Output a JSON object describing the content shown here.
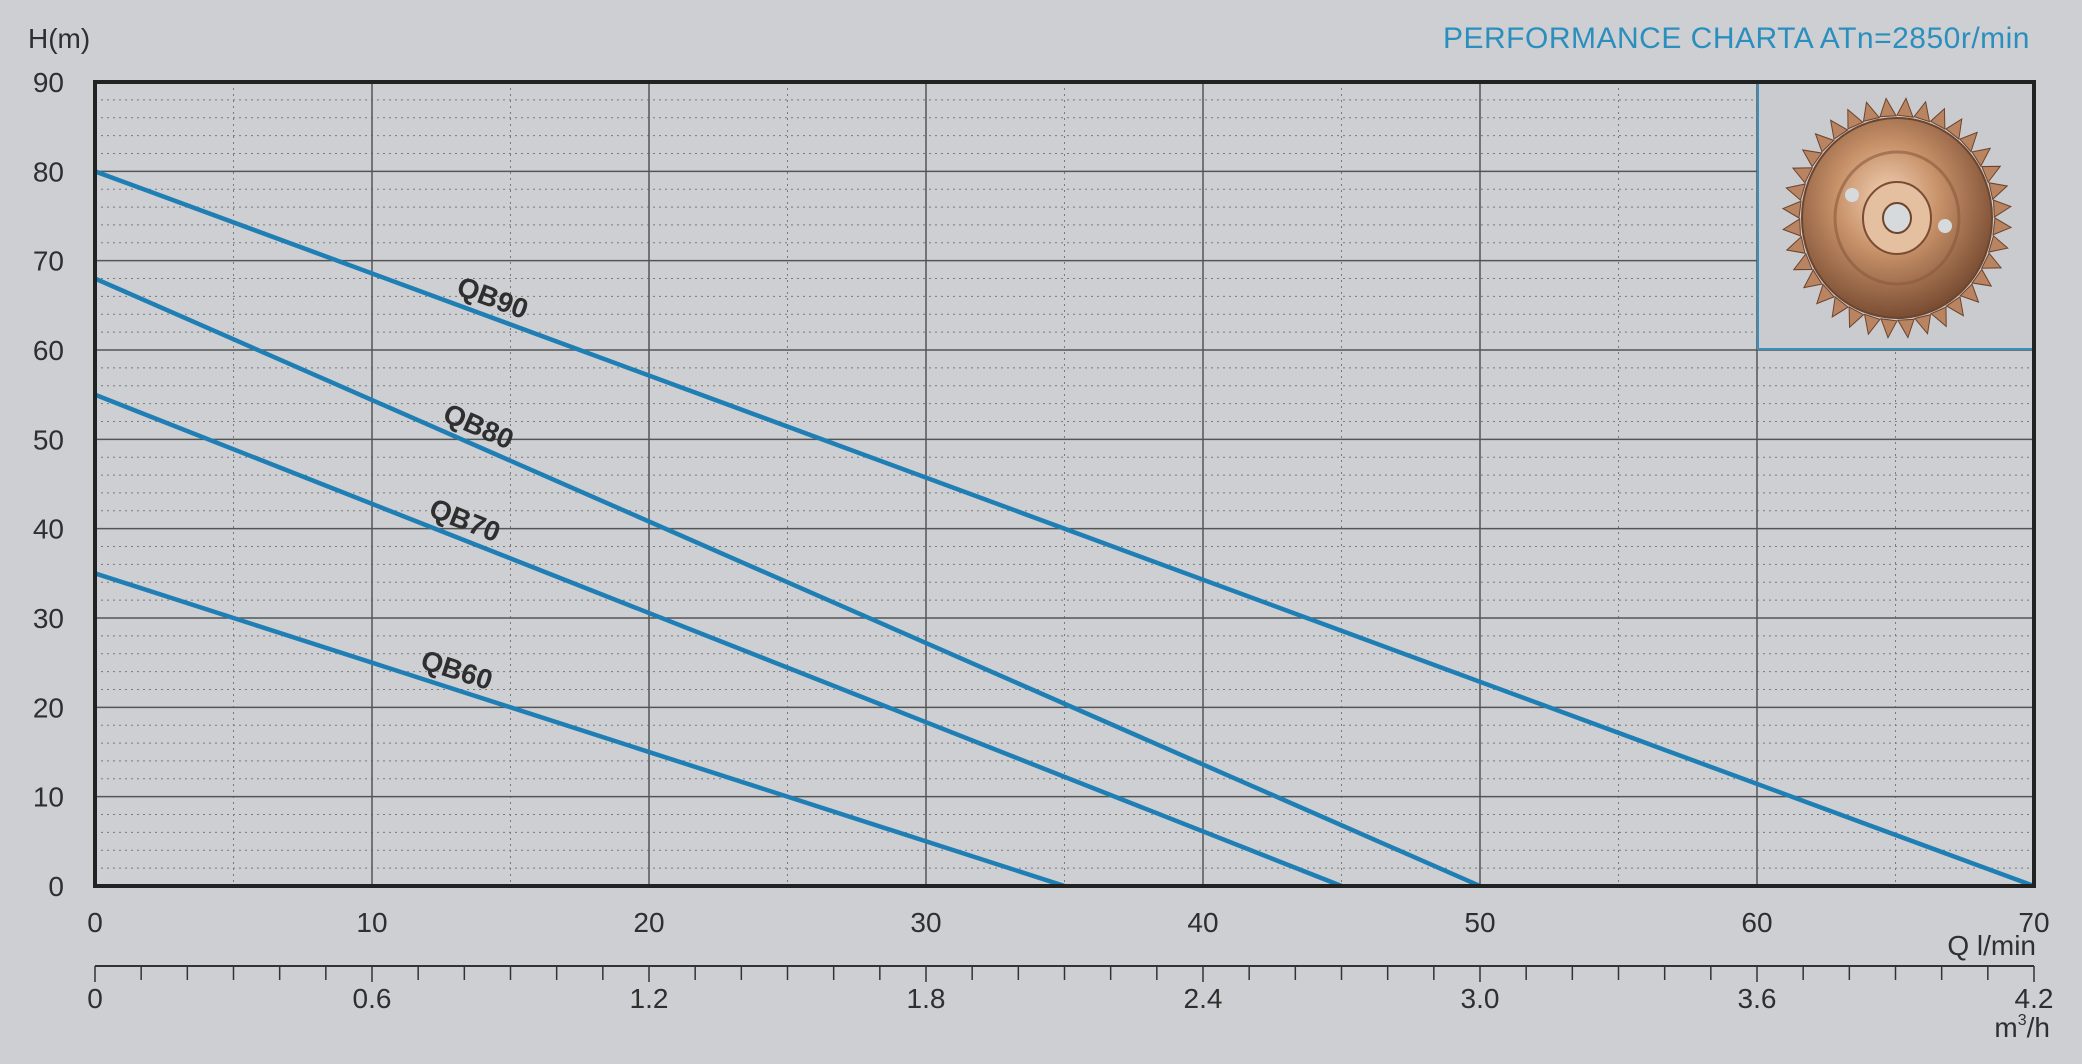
{
  "chart_data": {
    "type": "line",
    "title": "PERFORMANCE CHARTA ATn=2850r/min",
    "ylabel": "H(m)",
    "xlabel": "Q l/min",
    "x2label_main": "m",
    "x2label_sup": "3",
    "x2label_tail": "/h",
    "xlim": [
      0,
      70
    ],
    "ylim": [
      0,
      90
    ],
    "x_ticks": [
      0,
      10,
      20,
      30,
      40,
      50,
      60,
      70
    ],
    "y_ticks": [
      0,
      10,
      20,
      30,
      40,
      50,
      60,
      70,
      80,
      90
    ],
    "x2_ticks": [
      "0",
      "0.6",
      "1.2",
      "1.8",
      "2.4",
      "3.0",
      "3.6",
      "4.2"
    ],
    "grid": true,
    "series": [
      {
        "name": "QB90",
        "x": [
          0,
          70
        ],
        "y": [
          80,
          0
        ]
      },
      {
        "name": "QB80",
        "x": [
          0,
          50
        ],
        "y": [
          68,
          0
        ]
      },
      {
        "name": "QB70",
        "x": [
          0,
          45
        ],
        "y": [
          55,
          0
        ]
      },
      {
        "name": "QB60",
        "x": [
          0,
          35
        ],
        "y": [
          35,
          0
        ]
      }
    ],
    "colors": {
      "line": "#1f7fb5",
      "grid": "#555555",
      "frame": "#222222",
      "background": "#cdcfd2"
    },
    "inset_image": "impeller-photo"
  }
}
